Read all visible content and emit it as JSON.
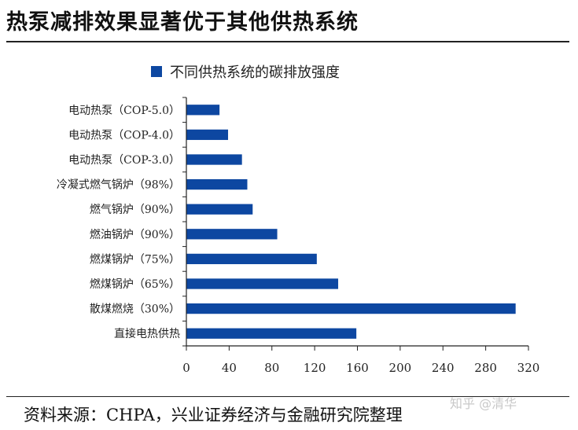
{
  "title": "热泵减排效果显著优于其他供热系统",
  "source": "资料来源：CHPA，兴业证券经济与金融研究院整理",
  "watermark": "知乎 @清华",
  "colors": {
    "bar": "#0d47a1",
    "axis": "#222222"
  },
  "chart_data": {
    "type": "bar",
    "orientation": "horizontal",
    "categories": [
      "电动热泵（COP-5.0）",
      "电动热泵（COP-4.0）",
      "电动热泵（COP-3.0）",
      "冷凝式燃气锅炉（98%）",
      "燃气锅炉（90%）",
      "燃油锅炉（90%）",
      "燃煤锅炉（75%）",
      "燃煤锅炉（65%）",
      "散煤燃烧（30%）",
      "直接电热供热"
    ],
    "series": [
      {
        "name": "不同供热系统的碳排放强度",
        "values": [
          31,
          39,
          52,
          57,
          62,
          85,
          122,
          142,
          308,
          159
        ]
      }
    ],
    "xlim": [
      0,
      320
    ],
    "xticks": [
      "0",
      "40",
      "80",
      "120",
      "160",
      "200",
      "240",
      "280",
      "320"
    ],
    "xlabel": "",
    "ylabel": "",
    "legend": "top"
  }
}
